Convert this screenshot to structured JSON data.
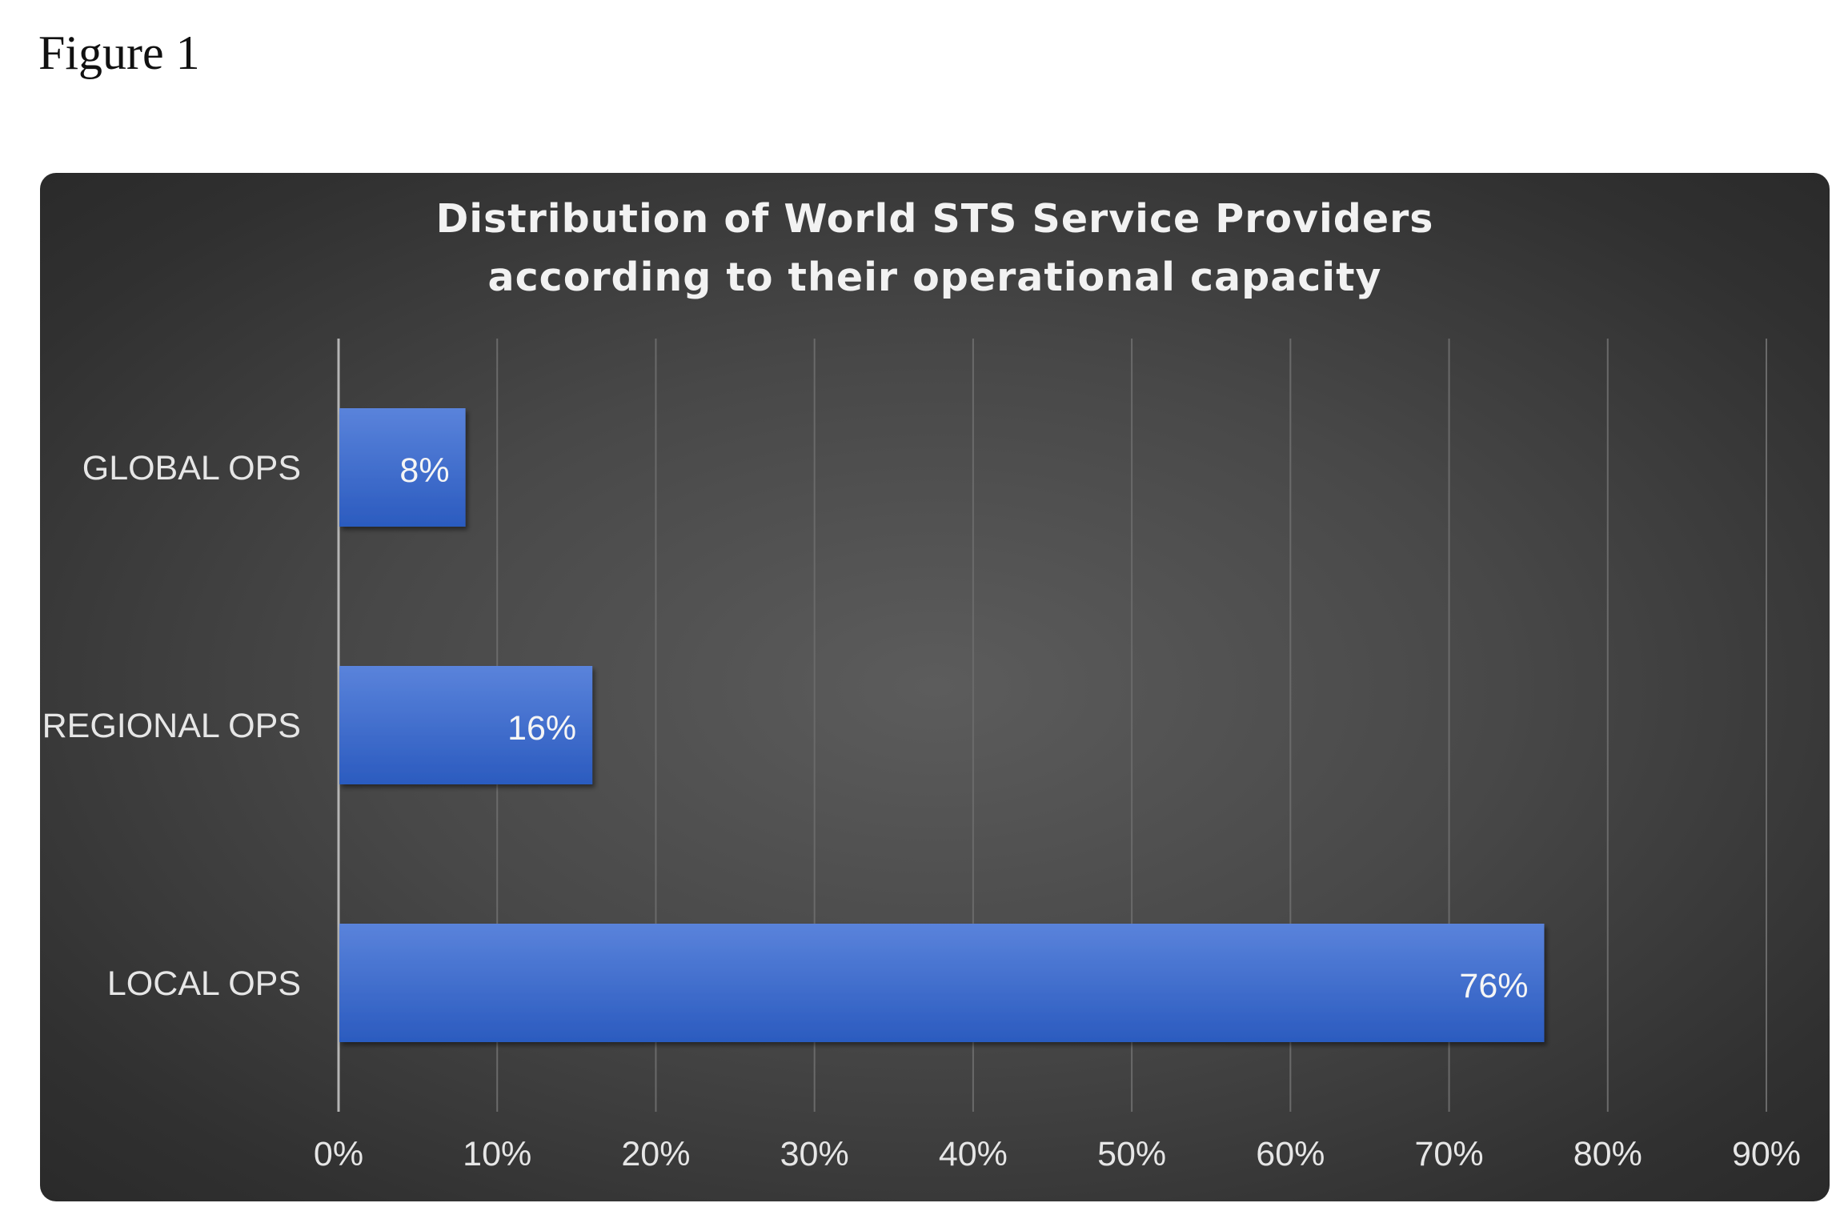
{
  "figure": {
    "caption": "Figure 1"
  },
  "chart_data": {
    "type": "bar",
    "orientation": "horizontal",
    "title": "Distribution of World STS Service Providers according to their operational capacity",
    "title_lines": [
      "Distribution of World STS Service Providers",
      "according to their operational capacity"
    ],
    "categories": [
      "GLOBAL OPS",
      "REGIONAL OPS",
      "LOCAL OPS"
    ],
    "values": [
      8,
      16,
      76
    ],
    "data_labels": [
      "8%",
      "16%",
      "76%"
    ],
    "xlim": [
      0,
      90
    ],
    "x_ticks": [
      0,
      10,
      20,
      30,
      40,
      50,
      60,
      70,
      80,
      90
    ],
    "x_tick_labels": [
      "0%",
      "10%",
      "20%",
      "30%",
      "40%",
      "50%",
      "60%",
      "70%",
      "80%",
      "90%"
    ],
    "xlabel": "",
    "ylabel": "",
    "grid": true,
    "legend": "none",
    "colors": {
      "bar_top": "#5a83db",
      "bar_bottom": "#2b5bbf",
      "background": "#474747",
      "gridline": "#6a6a6a",
      "axis_line": "#b5b5b5"
    }
  }
}
